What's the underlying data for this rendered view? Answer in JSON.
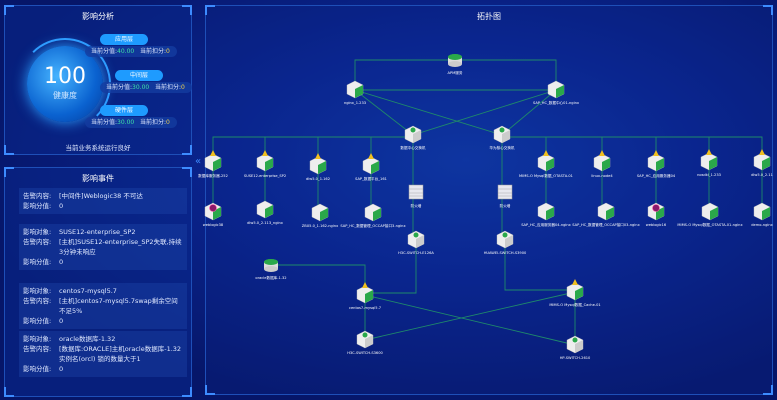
{
  "impact_analysis": {
    "title": "影响分析",
    "score": "100",
    "score_label": "健康度",
    "layers": [
      {
        "name": "应用层",
        "value_label": "当前分值:",
        "value": "40.00",
        "deduct_label": "当前扣分:",
        "deduct": "0"
      },
      {
        "name": "中间层",
        "value_label": "当前分值:",
        "value": "30.00",
        "deduct_label": "当前扣分:",
        "deduct": "0"
      },
      {
        "name": "硬件层",
        "value_label": "当前分值:",
        "value": "30.00",
        "deduct_label": "当前扣分:",
        "deduct": "0"
      }
    ],
    "status": "当前业务系统运行良好"
  },
  "impact_events": {
    "title": "影响事件",
    "events": [
      {
        "rows": [
          {
            "k": "告警内容:",
            "v": "[中间件]Weblogic38 不可达"
          },
          {
            "k": "影响分值:",
            "v": "0"
          }
        ]
      },
      {
        "rows": [
          {
            "k": "影响对象:",
            "v": "SUSE12-enterprise_SP2"
          },
          {
            "k": "告警内容:",
            "v": "[主机]SUSE12-enterprise_SP2失联,持续3分钟未响应"
          },
          {
            "k": "影响分值:",
            "v": "0"
          }
        ]
      },
      {
        "rows": [
          {
            "k": "影响对象:",
            "v": "centos7-mysql5.7"
          },
          {
            "k": "告警内容:",
            "v": "[主机]centos7-mysql5.7swap剩余空间不足5%"
          },
          {
            "k": "影响分值:",
            "v": "0"
          }
        ]
      },
      {
        "rows": [
          {
            "k": "影响对象:",
            "v": "oracle数据库-1.32"
          },
          {
            "k": "告警内容:",
            "v": "[数据库:ORACLE]主机oracle数据库-1.32实例名(orcl) 锁的数量大于1"
          },
          {
            "k": "影响分值:",
            "v": "0"
          }
        ]
      }
    ]
  },
  "topology": {
    "title": "拓扑图",
    "colors": {
      "link": "#1f8a6a",
      "ok": "#2aa84a",
      "warn": "#f0c020",
      "down": "#8a1a6a"
    },
    "nodes": [
      {
        "id": "apm",
        "label": "APM服务",
        "type": "db"
      },
      {
        "id": "nginx233",
        "label": "nginx_1.233",
        "type": "server"
      },
      {
        "id": "sapnginx",
        "label": "SAP_HC_数据中心01-nginx",
        "type": "server"
      },
      {
        "id": "sw1",
        "label": "数据中心交换机",
        "type": "switch"
      },
      {
        "id": "sw2",
        "label": "华为核心交换机",
        "type": "switch"
      },
      {
        "id": "a1",
        "label": "数据库服务器-252",
        "type": "warn"
      },
      {
        "id": "a2",
        "label": "SUSE12-enterprise_SP2",
        "type": "warn"
      },
      {
        "id": "a3",
        "label": "dlw5.0_1.162",
        "type": "warn"
      },
      {
        "id": "a4",
        "label": "SAP_数据平台_161",
        "type": "warn"
      },
      {
        "id": "a5",
        "label": "MIMS-O Mysql数据_OTASTA-01",
        "type": "warn"
      },
      {
        "id": "a6",
        "label": "linux-node4",
        "type": "warn"
      },
      {
        "id": "a7",
        "label": "SAP_HC_应用服务器04",
        "type": "warn"
      },
      {
        "id": "a8",
        "label": "nosdkl_1.233",
        "type": "warn"
      },
      {
        "id": "a9",
        "label": "dlw5.0_2.11",
        "type": "warn"
      },
      {
        "id": "b1",
        "label": "weblogic38",
        "type": "down"
      },
      {
        "id": "b2",
        "label": "dlw5.0_2.113_nginx",
        "type": "server"
      },
      {
        "id": "b3",
        "label": "ZBX5.0_1.162-nginx",
        "type": "server"
      },
      {
        "id": "b4",
        "label": "SAP_HC_数据管理_OCCAP接口3-nginx",
        "type": "server"
      },
      {
        "id": "b5",
        "label": "SAP_HC_应用服务器04-nginx",
        "type": "server"
      },
      {
        "id": "b6",
        "label": "SAP_HC_数据管理_OCCAP接口03-nginx",
        "type": "server"
      },
      {
        "id": "b7",
        "label": "weblogic16",
        "type": "down"
      },
      {
        "id": "b8",
        "label": "MIMS-O Mysql数据_OTASTA-01-nginx",
        "type": "server"
      },
      {
        "id": "b9",
        "label": "demo-nginx",
        "type": "server"
      },
      {
        "id": "fw1",
        "label": "防火墙",
        "type": "firewall"
      },
      {
        "id": "fw2",
        "label": "防火墙",
        "type": "firewall"
      },
      {
        "id": "h3c1",
        "label": "H3C-SWITCH-E126A",
        "type": "switch"
      },
      {
        "id": "hw",
        "label": "HUAWEI-SWITCH-S3900",
        "type": "switch"
      },
      {
        "id": "oracle",
        "label": "oracle数据库-1.32",
        "type": "db"
      },
      {
        "id": "centos",
        "label": "centos7-mysql5.7",
        "type": "warn"
      },
      {
        "id": "cache",
        "label": "MIMS-O Mysql数据_Cache-01",
        "type": "warn"
      },
      {
        "id": "h3c2",
        "label": "H3C-SWITCH-S3600",
        "type": "switch"
      },
      {
        "id": "hp",
        "label": "HP-SWITCH-2610",
        "type": "switch"
      }
    ]
  }
}
